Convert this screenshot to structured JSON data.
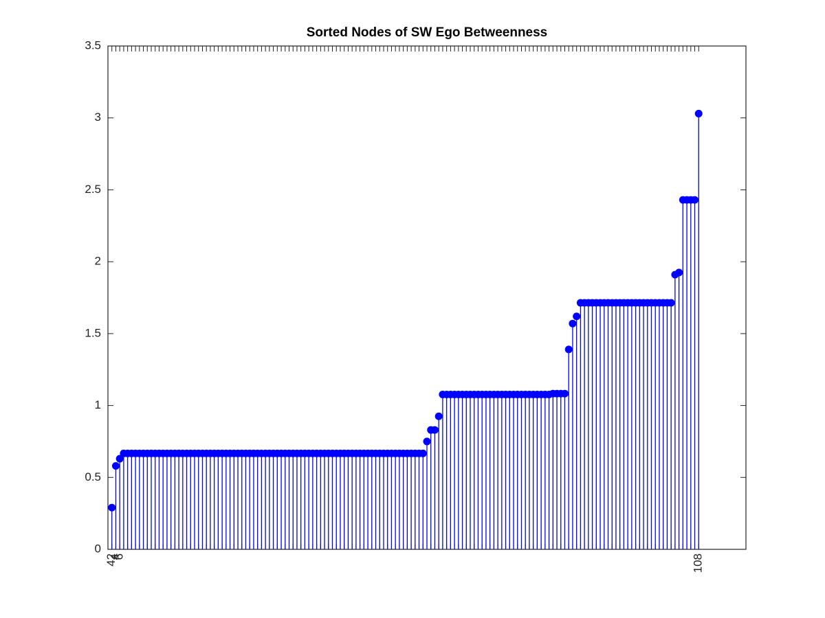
{
  "chart_data": {
    "type": "stem",
    "title": "Sorted Nodes of SW Ego Betweenness",
    "categories": [
      "42",
      "4",
      "6",
      null,
      null,
      null,
      null,
      null,
      null,
      null,
      null,
      null,
      null,
      null,
      null,
      null,
      null,
      null,
      null,
      null,
      null,
      null,
      null,
      null,
      null,
      null,
      null,
      null,
      null,
      null,
      null,
      null,
      null,
      null,
      null,
      null,
      null,
      null,
      null,
      null,
      null,
      null,
      null,
      null,
      null,
      null,
      null,
      null,
      null,
      null,
      null,
      null,
      null,
      null,
      null,
      null,
      null,
      null,
      null,
      null,
      null,
      null,
      null,
      null,
      null,
      null,
      null,
      null,
      null,
      null,
      null,
      null,
      null,
      null,
      null,
      null,
      null,
      null,
      null,
      null,
      null,
      null,
      null,
      null,
      null,
      null,
      null,
      null,
      null,
      null,
      null,
      null,
      null,
      null,
      null,
      null,
      null,
      null,
      null,
      null,
      null,
      null,
      null,
      null,
      null,
      null,
      null,
      null,
      null,
      null,
      null,
      null,
      null,
      null,
      null,
      null,
      null,
      null,
      null,
      null,
      null,
      null,
      null,
      null,
      null,
      null,
      null,
      null,
      null,
      null,
      null,
      null,
      null,
      null,
      null,
      null,
      null,
      null,
      null,
      null,
      null,
      null,
      null,
      null,
      null,
      null,
      null,
      null,
      null,
      "108"
    ],
    "values": [
      0.29,
      0.58,
      0.63,
      0.667,
      0.667,
      0.667,
      0.667,
      0.667,
      0.667,
      0.667,
      0.667,
      0.667,
      0.667,
      0.667,
      0.667,
      0.667,
      0.667,
      0.667,
      0.667,
      0.667,
      0.667,
      0.667,
      0.667,
      0.667,
      0.667,
      0.667,
      0.667,
      0.667,
      0.667,
      0.667,
      0.667,
      0.667,
      0.667,
      0.667,
      0.667,
      0.667,
      0.667,
      0.667,
      0.667,
      0.667,
      0.667,
      0.667,
      0.667,
      0.667,
      0.667,
      0.667,
      0.667,
      0.667,
      0.667,
      0.667,
      0.667,
      0.667,
      0.667,
      0.667,
      0.667,
      0.667,
      0.667,
      0.667,
      0.667,
      0.667,
      0.667,
      0.667,
      0.667,
      0.667,
      0.667,
      0.667,
      0.667,
      0.667,
      0.667,
      0.667,
      0.667,
      0.667,
      0.667,
      0.667,
      0.667,
      0.667,
      0.667,
      0.667,
      0.667,
      0.667,
      0.75,
      0.83,
      0.83,
      0.925,
      1.077,
      1.077,
      1.077,
      1.077,
      1.077,
      1.077,
      1.077,
      1.077,
      1.077,
      1.077,
      1.077,
      1.077,
      1.077,
      1.077,
      1.077,
      1.077,
      1.077,
      1.077,
      1.077,
      1.077,
      1.077,
      1.077,
      1.077,
      1.077,
      1.077,
      1.077,
      1.077,
      1.077,
      1.083,
      1.083,
      1.083,
      1.083,
      1.39,
      1.57,
      1.62,
      1.714,
      1.714,
      1.714,
      1.714,
      1.714,
      1.714,
      1.714,
      1.714,
      1.714,
      1.714,
      1.714,
      1.714,
      1.714,
      1.714,
      1.714,
      1.714,
      1.714,
      1.714,
      1.714,
      1.714,
      1.714,
      1.714,
      1.714,
      1.714,
      1.91,
      1.925,
      2.43,
      2.43,
      2.43,
      2.43,
      3.03
    ],
    "color": "#0000ff",
    "ylim": [
      0,
      3.5
    ],
    "yticks": [
      0,
      0.5,
      1,
      1.5,
      2,
      2.5,
      3,
      3.5
    ],
    "grid": false
  }
}
